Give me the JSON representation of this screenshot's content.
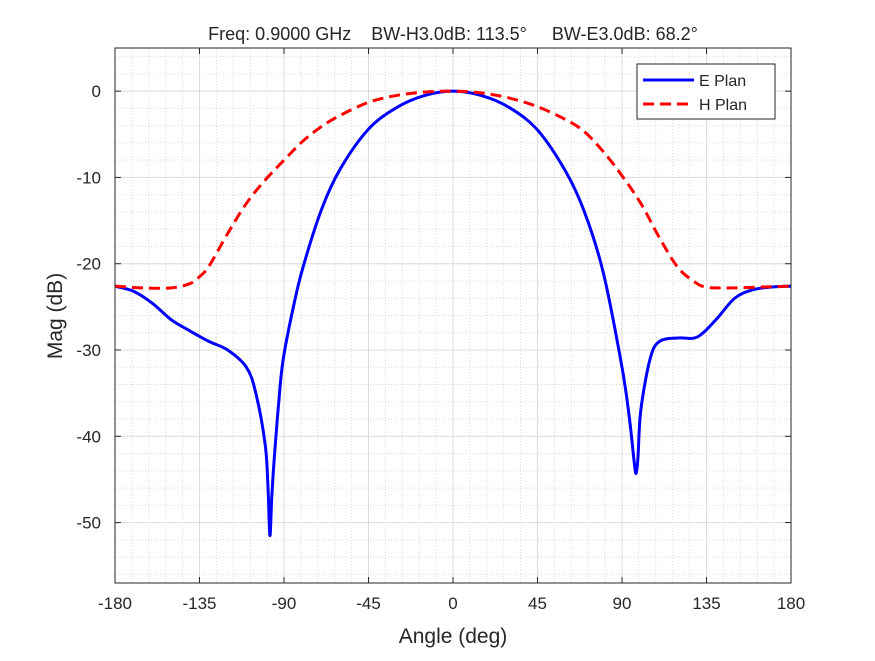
{
  "chart_data": {
    "type": "line",
    "title": "Freq: 0.9000 GHz    BW-H3.0dB: 113.5°     BW-E3.0dB: 68.2°",
    "xlabel": "Angle (deg)",
    "ylabel": "Mag (dB)",
    "xlim": [
      -180,
      180
    ],
    "ylim": [
      -57,
      5
    ],
    "xticks": [
      -180,
      -135,
      -90,
      -45,
      0,
      45,
      90,
      135,
      180
    ],
    "yticks": [
      0,
      -10,
      -20,
      -30,
      -40,
      -50
    ],
    "xtick_labels": [
      "-180",
      "-135",
      "-90",
      "-45",
      "0",
      "45",
      "90",
      "135",
      "180"
    ],
    "ytick_labels": [
      "0",
      "-10",
      "-20",
      "-30",
      "-40",
      "-50"
    ],
    "grid": "major and minor",
    "legend_position": "top-right",
    "series": [
      {
        "name": "E Plan",
        "color": "#0000ff",
        "style": "solid",
        "x": [
          -180,
          -170,
          -160,
          -150,
          -140,
          -130,
          -120,
          -110,
          -105,
          -100,
          -98.5,
          -97.5,
          -96.5,
          -95,
          -92,
          -90,
          -85,
          -80,
          -70,
          -60,
          -45,
          -30,
          -15,
          0,
          15,
          30,
          45,
          60,
          70,
          80,
          90,
          94,
          96.5,
          97.5,
          98.5,
          100,
          105,
          110,
          120,
          130,
          140,
          150,
          160,
          170,
          180
        ],
        "y": [
          -22.6,
          -23.2,
          -24.6,
          -26.5,
          -27.8,
          -29,
          -30,
          -32,
          -35,
          -41,
          -46,
          -51.5,
          -47,
          -42,
          -34,
          -30.5,
          -25,
          -20.5,
          -13.7,
          -9,
          -4.4,
          -1.9,
          -0.5,
          0,
          -0.5,
          -1.9,
          -4.5,
          -9.3,
          -14,
          -21,
          -32,
          -38,
          -43,
          -44.3,
          -42.5,
          -37,
          -31,
          -29,
          -28.6,
          -28.5,
          -26.5,
          -24,
          -23,
          -22.7,
          -22.6
        ]
      },
      {
        "name": "H Plan",
        "color": "#ff0000",
        "style": "dashed",
        "x": [
          -180,
          -165,
          -150,
          -140,
          -135,
          -130,
          -120,
          -110,
          -100,
          -90,
          -80,
          -70,
          -60,
          -45,
          -30,
          -15,
          0,
          15,
          30,
          45,
          60,
          70,
          80,
          90,
          100,
          110,
          120,
          130,
          135,
          140,
          150,
          165,
          180
        ],
        "y": [
          -22.6,
          -22.8,
          -22.8,
          -22.3,
          -21.5,
          -20.3,
          -16.5,
          -13,
          -10.3,
          -8,
          -5.8,
          -4.1,
          -2.8,
          -1.3,
          -0.5,
          -0.1,
          0,
          -0.2,
          -0.8,
          -1.8,
          -3.3,
          -4.7,
          -7,
          -9.8,
          -13,
          -17,
          -20.5,
          -22.3,
          -22.7,
          -22.8,
          -22.8,
          -22.7,
          -22.6
        ]
      }
    ]
  }
}
